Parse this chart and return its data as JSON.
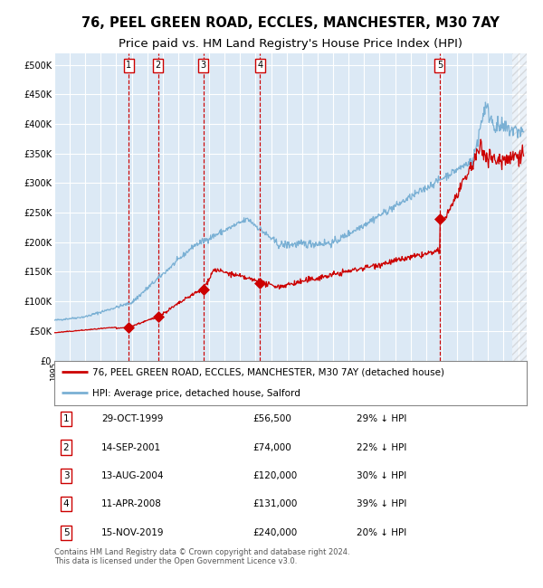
{
  "title1": "76, PEEL GREEN ROAD, ECCLES, MANCHESTER, M30 7AY",
  "title2": "Price paid vs. HM Land Registry's House Price Index (HPI)",
  "legend_red": "76, PEEL GREEN ROAD, ECCLES, MANCHESTER, M30 7AY (detached house)",
  "legend_blue": "HPI: Average price, detached house, Salford",
  "transactions": [
    {
      "num": 1,
      "date": "29-OCT-1999",
      "date_x": 1999.82,
      "price": 56500,
      "pct": "29%"
    },
    {
      "num": 2,
      "date": "14-SEP-2001",
      "date_x": 2001.71,
      "price": 74000,
      "pct": "22%"
    },
    {
      "num": 3,
      "date": "13-AUG-2004",
      "date_x": 2004.62,
      "price": 120000,
      "pct": "30%"
    },
    {
      "num": 4,
      "date": "11-APR-2008",
      "date_x": 2008.28,
      "price": 131000,
      "pct": "39%"
    },
    {
      "num": 5,
      "date": "15-NOV-2019",
      "date_x": 2019.88,
      "price": 240000,
      "pct": "20%"
    }
  ],
  "table_rows": [
    [
      "1",
      "29-OCT-1999",
      "£56,500",
      "29% ↓ HPI"
    ],
    [
      "2",
      "14-SEP-2001",
      "£74,000",
      "22% ↓ HPI"
    ],
    [
      "3",
      "13-AUG-2004",
      "£120,000",
      "30% ↓ HPI"
    ],
    [
      "4",
      "11-APR-2008",
      "£131,000",
      "39% ↓ HPI"
    ],
    [
      "5",
      "15-NOV-2019",
      "£240,000",
      "20% ↓ HPI"
    ]
  ],
  "footer": "Contains HM Land Registry data © Crown copyright and database right 2024.\nThis data is licensed under the Open Government Licence v3.0.",
  "xlim": [
    1995,
    2025.5
  ],
  "ylim": [
    0,
    520000
  ],
  "yticks": [
    0,
    50000,
    100000,
    150000,
    200000,
    250000,
    300000,
    350000,
    400000,
    450000,
    500000
  ],
  "background_color": "#dce9f5",
  "grid_color": "#ffffff",
  "red_line_color": "#cc0000",
  "blue_line_color": "#7ab0d4",
  "vline_color": "#cc0000",
  "marker_color": "#cc0000",
  "box_color": "#cc0000",
  "title_fontsize": 10.5,
  "subtitle_fontsize": 9.5
}
